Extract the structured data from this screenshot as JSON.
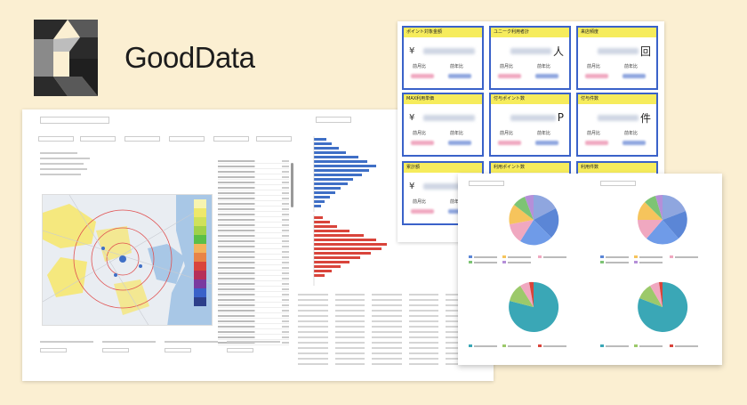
{
  "brand": {
    "name": "GoodData",
    "logo_icon": "gooddata-g-icon",
    "text_color": "#1c1c1c",
    "mark_colors": [
      "#2b2b2b",
      "#595959",
      "#8a8a8a",
      "#bdbdbd"
    ]
  },
  "background_color": "#fbefd2",
  "kpi_cards": [
    {
      "title": "ポイント対象金額",
      "prefix": "¥",
      "unit": "",
      "sub_left": "前月比",
      "sub_right": "前年比"
    },
    {
      "title": "ユニーク利用者計",
      "prefix": "",
      "unit": "人",
      "sub_left": "前月比",
      "sub_right": "前年比"
    },
    {
      "title": "来店頻度",
      "prefix": "",
      "unit": "回",
      "sub_left": "前月比",
      "sub_right": "前年比"
    },
    {
      "title": "MAX利用単価",
      "prefix": "¥",
      "unit": "",
      "sub_left": "前月比",
      "sub_right": "前年比"
    },
    {
      "title": "付与ポイント数",
      "prefix": "",
      "unit": "P",
      "sub_left": "前月比",
      "sub_right": "前年比"
    },
    {
      "title": "付与件数",
      "prefix": "",
      "unit": "件",
      "sub_left": "前月比",
      "sub_right": "前年比"
    },
    {
      "title": "累計額",
      "prefix": "¥",
      "unit": "",
      "sub_left": "前月比",
      "sub_right": "前年比"
    },
    {
      "title": "利用ポイント数",
      "prefix": "",
      "unit": "",
      "sub_left": "",
      "sub_right": ""
    },
    {
      "title": "利用件数",
      "prefix": "",
      "unit": "",
      "sub_left": "",
      "sub_right": ""
    }
  ],
  "kpi_colors": {
    "border": "#3a62c9",
    "header": "#f6ec5c",
    "pct_blue": "#8fa6df",
    "pct_pink": "#f0a8c0"
  },
  "chart_colors": {
    "blue": "#3f6fc6",
    "red": "#d9443b",
    "map_yellow": "#f7e66a",
    "pie_teal": "#3aa7b6"
  }
}
